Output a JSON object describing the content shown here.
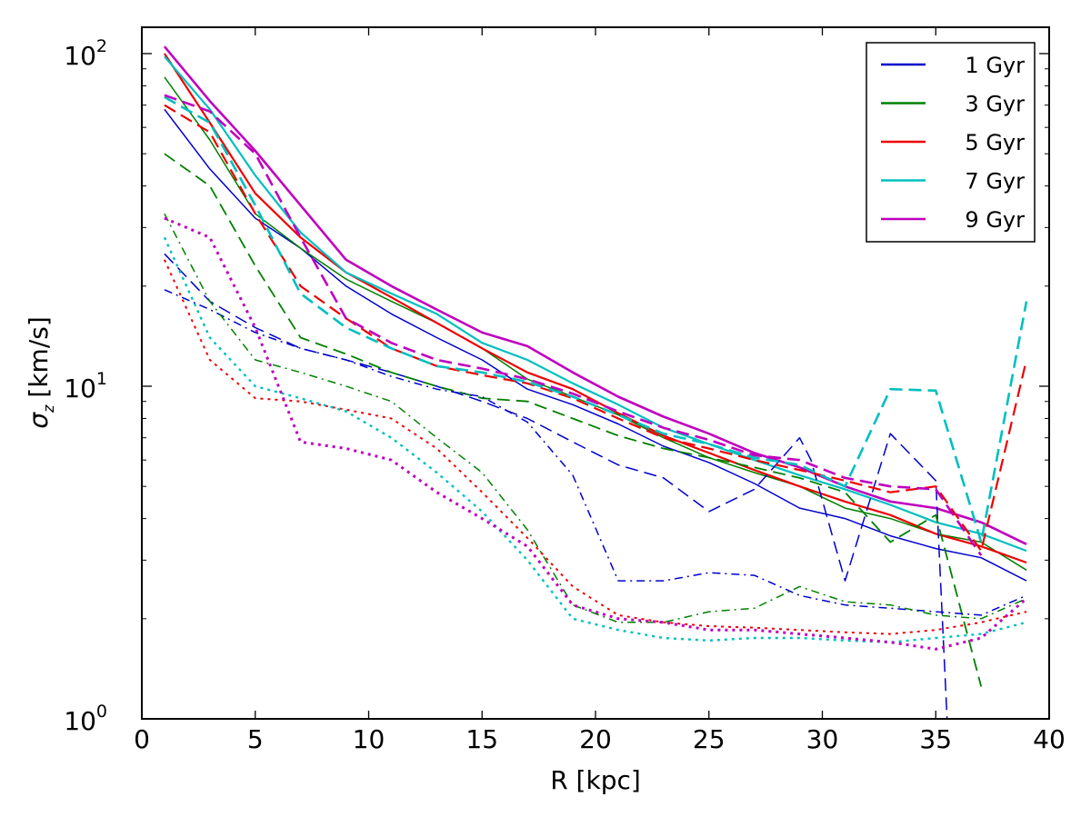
{
  "chart_data": {
    "type": "line",
    "title": "",
    "xlabel": "R [kpc]",
    "ylabel": "σ_z [km/s]",
    "ylabel_symbol": "σ",
    "ylabel_subscript": "z",
    "ylabel_unit": "[km/s]",
    "xlim": [
      0,
      40
    ],
    "ylim": [
      1,
      120
    ],
    "yscale": "log",
    "x_ticks": [
      "0",
      "5",
      "10",
      "15",
      "20",
      "25",
      "30",
      "35",
      "40"
    ],
    "y_ticks": [
      {
        "base": "10",
        "exp": "0"
      },
      {
        "base": "10",
        "exp": "1"
      },
      {
        "base": "10",
        "exp": "2"
      }
    ],
    "legend_position": "top-right",
    "line_styles": [
      "solid",
      "dashed",
      "dotted"
    ],
    "legend": [
      {
        "label": "1 Gyr",
        "color": "#0000cc"
      },
      {
        "label": "3 Gyr",
        "color": "#008000"
      },
      {
        "label": "5 Gyr",
        "color": "#ee0000"
      },
      {
        "label": "7 Gyr",
        "color": "#00bfbf"
      },
      {
        "label": "9 Gyr",
        "color": "#bf00bf"
      }
    ],
    "series": [
      {
        "color": "#0000cc",
        "style": "solid",
        "width": 1.5,
        "x": [
          1,
          3,
          5,
          7,
          9,
          11,
          13,
          15,
          17,
          19,
          21,
          23,
          25,
          27,
          29,
          31,
          33,
          35,
          37,
          39
        ],
        "y": [
          68,
          45,
          32,
          26,
          20,
          16.5,
          14,
          12,
          9.8,
          8.8,
          7.7,
          6.6,
          5.9,
          5.1,
          4.3,
          4.0,
          3.55,
          3.25,
          3.05,
          2.6
        ]
      },
      {
        "color": "#008000",
        "style": "solid",
        "width": 1.5,
        "x": [
          1,
          3,
          5,
          7,
          9,
          11,
          13,
          15,
          17,
          19,
          21,
          23,
          25,
          27,
          29,
          31,
          33,
          35,
          37,
          39
        ],
        "y": [
          85,
          55,
          33,
          26,
          21,
          18,
          15.5,
          13,
          10.5,
          9.3,
          8.2,
          7.0,
          6.1,
          5.5,
          5.0,
          4.3,
          4.0,
          3.6,
          3.4,
          2.8
        ]
      },
      {
        "color": "#ee0000",
        "style": "solid",
        "width": 2.2,
        "x": [
          1,
          3,
          5,
          7,
          9,
          11,
          13,
          15,
          17,
          19,
          21,
          23,
          25,
          27,
          29,
          31,
          33,
          35,
          37,
          39
        ],
        "y": [
          100,
          62,
          38,
          28,
          22,
          18.5,
          15.5,
          13,
          11,
          9.8,
          8.3,
          7.1,
          6.3,
          5.6,
          5.0,
          4.5,
          4.1,
          3.6,
          3.3,
          2.95
        ]
      },
      {
        "color": "#00bfbf",
        "style": "solid",
        "width": 2.2,
        "x": [
          1,
          3,
          5,
          7,
          9,
          11,
          13,
          15,
          17,
          19,
          21,
          23,
          25,
          27,
          29,
          31,
          33,
          35,
          37,
          39
        ],
        "y": [
          98,
          68,
          43,
          29,
          22,
          19,
          16.5,
          13.5,
          12,
          10.2,
          8.8,
          7.5,
          6.7,
          6.0,
          5.4,
          4.9,
          4.4,
          3.9,
          3.6,
          3.2
        ]
      },
      {
        "color": "#bf00bf",
        "style": "solid",
        "width": 2.6,
        "x": [
          1,
          3,
          5,
          7,
          9,
          11,
          13,
          15,
          17,
          19,
          21,
          23,
          25,
          27,
          29,
          31,
          33,
          35,
          37,
          39
        ],
        "y": [
          105,
          72,
          51,
          35,
          24,
          20,
          17,
          14.5,
          13.2,
          11,
          9.3,
          8.1,
          7.2,
          6.3,
          5.7,
          5.0,
          4.5,
          4.3,
          3.9,
          3.35
        ]
      },
      {
        "color": "#0000cc",
        "style": "dashed",
        "width": 1.5,
        "x": [
          1,
          3,
          5,
          7,
          9,
          11,
          13,
          15,
          17,
          19,
          21,
          23,
          25,
          27,
          29,
          29.5,
          31,
          33,
          35,
          35.5
        ],
        "y": [
          25,
          18,
          15,
          13,
          12,
          11,
          10,
          9.0,
          8.0,
          6.8,
          5.8,
          5.3,
          4.2,
          4.9,
          7.0,
          6.0,
          2.6,
          7.2,
          5.2,
          1.0
        ]
      },
      {
        "color": "#008000",
        "style": "dashed",
        "width": 1.8,
        "x": [
          1,
          3,
          5,
          7,
          9,
          11,
          13,
          15,
          17,
          19,
          21,
          23,
          25,
          27,
          29,
          31,
          33,
          35,
          37
        ],
        "y": [
          50,
          40,
          23,
          14,
          12.5,
          11,
          10,
          9.2,
          9.0,
          8.0,
          7.1,
          6.5,
          6.1,
          5.7,
          5.3,
          4.8,
          3.4,
          4.1,
          1.25
        ]
      },
      {
        "color": "#ee0000",
        "style": "dashed",
        "width": 2.2,
        "x": [
          1,
          3,
          5,
          7,
          9,
          11,
          13,
          15,
          17,
          19,
          21,
          23,
          25,
          27,
          29,
          31,
          33,
          35,
          37,
          39
        ],
        "y": [
          70,
          58,
          33,
          20,
          16,
          13,
          11.5,
          10.8,
          10.2,
          9.2,
          8.0,
          7.0,
          6.5,
          6.0,
          5.6,
          5.2,
          4.8,
          5.0,
          3.2,
          12
        ]
      },
      {
        "color": "#00bfbf",
        "style": "dashed",
        "width": 2.6,
        "x": [
          1,
          3,
          5,
          7,
          9,
          11,
          13,
          15,
          17,
          19,
          21,
          23,
          25,
          27,
          29,
          31,
          33,
          35,
          37,
          39
        ],
        "y": [
          74,
          62,
          35,
          19,
          15,
          13,
          11.5,
          11,
          10.3,
          9.3,
          8.2,
          7.2,
          6.7,
          6.1,
          5.8,
          5.0,
          9.8,
          9.7,
          3.4,
          18
        ]
      },
      {
        "color": "#bf00bf",
        "style": "dashed",
        "width": 2.6,
        "x": [
          1,
          3,
          5,
          7,
          9,
          11,
          13,
          15,
          17,
          19,
          21,
          23,
          25,
          27,
          29,
          31,
          33,
          35,
          37
        ],
        "y": [
          75,
          67,
          50,
          28,
          16,
          13.5,
          12,
          11.3,
          10.5,
          9.5,
          8.4,
          7.5,
          6.9,
          6.2,
          6.0,
          5.3,
          5.0,
          4.9,
          3.1
        ]
      },
      {
        "color": "#0000cc",
        "style": "dashdot",
        "width": 1.5,
        "x": [
          1,
          3,
          5,
          7,
          9,
          11,
          13,
          15,
          17,
          19,
          21,
          23,
          25,
          27,
          29,
          31,
          33,
          35,
          37,
          39
        ],
        "y": [
          19.5,
          17,
          14.5,
          13,
          12,
          10.7,
          9.8,
          9.3,
          7.8,
          5.4,
          2.6,
          2.6,
          2.75,
          2.7,
          2.35,
          2.2,
          2.15,
          2.1,
          2.05,
          2.35
        ]
      },
      {
        "color": "#008000",
        "style": "dashdot",
        "width": 1.5,
        "x": [
          1,
          3,
          5,
          7,
          9,
          11,
          13,
          15,
          17,
          19,
          21,
          23,
          25,
          27,
          29,
          31,
          33,
          35,
          37,
          39
        ],
        "y": [
          33,
          18,
          12,
          11,
          10,
          9.0,
          7.0,
          5.5,
          3.7,
          2.2,
          1.95,
          1.95,
          2.1,
          2.15,
          2.5,
          2.25,
          2.2,
          2.05,
          2.0,
          2.3
        ]
      },
      {
        "color": "#ee0000",
        "style": "dotted",
        "width": 2.0,
        "x": [
          1,
          3,
          5,
          7,
          9,
          11,
          13,
          15,
          17,
          19,
          21,
          23,
          25,
          27,
          29,
          31,
          33,
          35,
          37,
          39
        ],
        "y": [
          24,
          12,
          9.2,
          9.0,
          8.5,
          8.0,
          6.5,
          4.8,
          3.5,
          2.5,
          2.05,
          1.95,
          1.9,
          1.88,
          1.85,
          1.82,
          1.8,
          1.85,
          1.95,
          2.1
        ]
      },
      {
        "color": "#00bfbf",
        "style": "dotted",
        "width": 2.4,
        "x": [
          1,
          3,
          5,
          7,
          9,
          11,
          13,
          15,
          17,
          19,
          21,
          23,
          25,
          27,
          29,
          31,
          33,
          35,
          37,
          39
        ],
        "y": [
          28,
          14,
          10,
          9.2,
          8.4,
          7.0,
          5.5,
          4.2,
          3.0,
          2.0,
          1.85,
          1.75,
          1.72,
          1.75,
          1.75,
          1.72,
          1.7,
          1.75,
          1.8,
          1.95
        ]
      },
      {
        "color": "#bf00bf",
        "style": "dotted",
        "width": 3.0,
        "x": [
          1,
          3,
          5,
          7,
          9,
          11,
          13,
          15,
          17,
          19,
          21,
          23,
          25,
          27,
          29,
          31,
          33,
          35,
          37,
          39
        ],
        "y": [
          32,
          28,
          15,
          6.8,
          6.5,
          6.0,
          4.8,
          4.0,
          3.3,
          2.2,
          2.0,
          1.95,
          1.85,
          1.85,
          1.8,
          1.75,
          1.7,
          1.62,
          1.75,
          2.3
        ]
      }
    ]
  }
}
